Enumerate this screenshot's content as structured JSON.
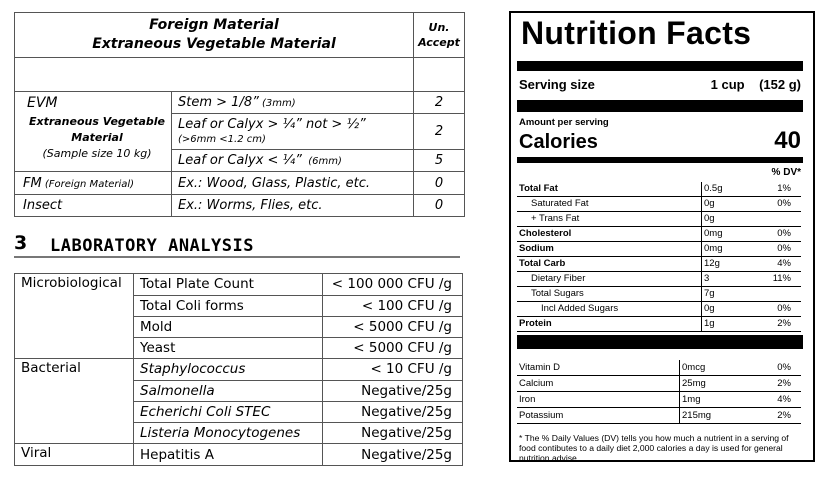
{
  "foreign_table": {
    "header_line1": "Foreign Material",
    "header_line2": "Extraneous Vegetable Material",
    "header_accept_line1": "Un.",
    "header_accept_line2": "Accept",
    "evm_title": "EVM",
    "evm_subtitle_line1": "Extraneous Vegetable",
    "evm_subtitle_line2": "Material",
    "evm_sample": "(Sample size 10 kg)",
    "evm_rows": [
      {
        "desc": "Stem > 1/8”",
        "note": " (3mm)",
        "value": "2"
      },
      {
        "desc": "Leaf or Calyx > ¼” not > ½”",
        "note": "(>6mm <1.2 cm)",
        "value": "2"
      },
      {
        "desc": "Leaf or Calyx < ¼”",
        "note": "  (6mm)",
        "value": "5"
      }
    ],
    "fm_label": "FM",
    "fm_label_note": " (Foreign Material)",
    "fm_desc": "Ex.: Wood, Glass, Plastic, etc.",
    "fm_value": "0",
    "insect_label": "Insect",
    "insect_desc": "Ex.: Worms, Flies, etc.",
    "insect_value": "0"
  },
  "section": {
    "number": "3",
    "title": "LABORATORY ANALYSIS"
  },
  "lab_table": {
    "groups": [
      {
        "category": "Microbiological",
        "rows": [
          {
            "test": "Total Plate Count",
            "value": "< 100 000 CFU /g",
            "italic": false
          },
          {
            "test": "Total Coli forms",
            "value": "< 100 CFU /g",
            "italic": false
          },
          {
            "test": "Mold",
            "value": "< 5000 CFU /g",
            "italic": false
          },
          {
            "test": "Yeast",
            "value": "< 5000 CFU /g",
            "italic": false
          }
        ]
      },
      {
        "category": "Bacterial",
        "rows": [
          {
            "test": "Staphylococcus",
            "value": "< 10 CFU /g",
            "italic": true
          },
          {
            "test": "Salmonella",
            "value": "Negative/25g",
            "italic": true
          },
          {
            "test": "Echerichi Coli STEC",
            "value": "Negative/25g",
            "italic": true
          },
          {
            "test": "Listeria Monocytogenes",
            "value": "Negative/25g",
            "italic": true
          }
        ]
      },
      {
        "category": "Viral",
        "rows": [
          {
            "test": "Hepatitis A",
            "value": "Negative/25g",
            "italic": false
          }
        ]
      }
    ]
  },
  "nutrition": {
    "title": "Nutrition Facts",
    "serving_label": "Serving size",
    "serving_value": "1 cup",
    "serving_grams": "(152 g)",
    "amount_per_serving": "Amount per serving",
    "calories_label": "Calories",
    "calories_value": "40",
    "dv_header": "% DV*",
    "nutrients": [
      {
        "name": "Total Fat",
        "amount": "0.5g",
        "dv": "1%",
        "bold": true,
        "indent": 0
      },
      {
        "name": "Saturated Fat",
        "amount": "0g",
        "dv": "0%",
        "bold": false,
        "indent": 1
      },
      {
        "name": "+ Trans Fat",
        "amount": "0g",
        "dv": "",
        "bold": false,
        "indent": 1
      },
      {
        "name": "Cholesterol",
        "amount": "0mg",
        "dv": "0%",
        "bold": true,
        "indent": 0
      },
      {
        "name": "Sodium",
        "amount": "0mg",
        "dv": "0%",
        "bold": true,
        "indent": 0
      },
      {
        "name": "Total Carb",
        "amount": "12g",
        "dv": "4%",
        "bold": true,
        "indent": 0
      },
      {
        "name": "Dietary Fiber",
        "amount": "3",
        "dv": "11%",
        "bold": false,
        "indent": 1
      },
      {
        "name": "Total Sugars",
        "amount": "7g",
        "dv": "",
        "bold": false,
        "indent": 1
      },
      {
        "name": "Incl Added Sugars",
        "amount": "0g",
        "dv": "0%",
        "bold": false,
        "indent": 2
      },
      {
        "name": "Protein",
        "amount": "1g",
        "dv": "2%",
        "bold": true,
        "indent": 0
      }
    ],
    "vitamins": [
      {
        "name": "Vitamin D",
        "amount": "0mcg",
        "dv": "0%"
      },
      {
        "name": "Calcium",
        "amount": "25mg",
        "dv": "2%"
      },
      {
        "name": "Iron",
        "amount": "1mg",
        "dv": "4%"
      },
      {
        "name": "Potassium",
        "amount": "215mg",
        "dv": "2%"
      }
    ],
    "footnote": "* The % Daily Values (DV) tells you how much a nutrient in a serving of food contibutes to a daily diet 2,000 calories a day is used for general nutrition advise."
  }
}
